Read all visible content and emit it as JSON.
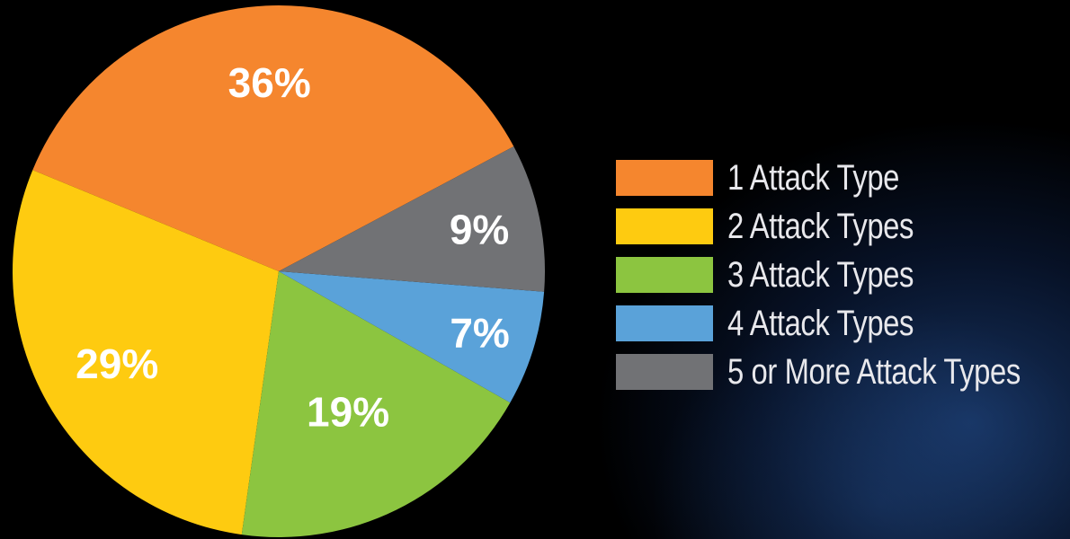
{
  "chart_data": {
    "type": "pie",
    "title": "",
    "legend_position": "right",
    "categories": [
      "1 Attack Type",
      "2 Attack Types",
      "3 Attack Types",
      "4 Attack Types",
      "5 or More Attack Types"
    ],
    "values": [
      36,
      29,
      19,
      7,
      9
    ],
    "labels": [
      "36%",
      "29%",
      "19%",
      "7%",
      "9%"
    ],
    "colors": [
      "#f5862e",
      "#fecb10",
      "#8cc540",
      "#5aa2d9",
      "#717275"
    ]
  }
}
